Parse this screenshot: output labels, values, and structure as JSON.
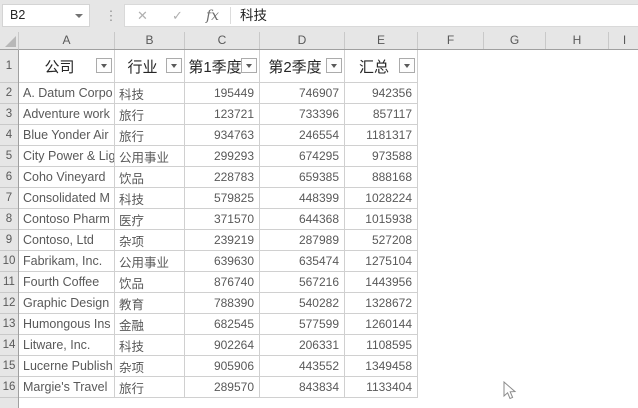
{
  "formula_bar": {
    "name_box": "B2",
    "handle_icon": "⋮",
    "cancel_label": "✕",
    "enter_label": "✓",
    "fx_label": "fx",
    "value": "科技"
  },
  "sheet": {
    "column_letters": [
      "A",
      "B",
      "C",
      "D",
      "E",
      "F",
      "G",
      "H",
      "I"
    ],
    "row_numbers": [
      "1",
      "2",
      "3",
      "4",
      "5",
      "6",
      "7",
      "8",
      "9",
      "10",
      "11",
      "12",
      "13",
      "14",
      "15",
      "16"
    ]
  },
  "table": {
    "headers": [
      "公司",
      "行业",
      "第1季度",
      "第2季度",
      "汇总"
    ],
    "rows": [
      [
        "A. Datum Corpo",
        "科技",
        "195449",
        "746907",
        "942356"
      ],
      [
        "Adventure work",
        "旅行",
        "123721",
        "733396",
        "857117"
      ],
      [
        "Blue Yonder Air",
        "旅行",
        "934763",
        "246554",
        "1181317"
      ],
      [
        "City Power & Lig",
        "公用事业",
        "299293",
        "674295",
        "973588"
      ],
      [
        "Coho Vineyard",
        "饮品",
        "228783",
        "659385",
        "888168"
      ],
      [
        "Consolidated M",
        "科技",
        "579825",
        "448399",
        "1028224"
      ],
      [
        "Contoso Pharm",
        "医疗",
        "371570",
        "644368",
        "1015938"
      ],
      [
        "Contoso, Ltd",
        "杂项",
        "239219",
        "287989",
        "527208"
      ],
      [
        "Fabrikam, Inc.",
        "公用事业",
        "639630",
        "635474",
        "1275104"
      ],
      [
        "Fourth Coffee",
        "饮品",
        "876740",
        "567216",
        "1443956"
      ],
      [
        "Graphic Design",
        "教育",
        "788390",
        "540282",
        "1328672"
      ],
      [
        "Humongous Ins",
        "金融",
        "682545",
        "577599",
        "1260144"
      ],
      [
        "Litware, Inc.",
        "科技",
        "902264",
        "206331",
        "1108595"
      ],
      [
        "Lucerne Publish",
        "杂项",
        "905906",
        "443552",
        "1349458"
      ],
      [
        "Margie's Travel",
        "旅行",
        "289570",
        "843834",
        "1133404"
      ]
    ]
  },
  "colors": {
    "chrome_bg": "#e6e6e6",
    "grid_border": "#d0d0d0",
    "strip_border": "#a0a0a0",
    "strip_text": "#595959",
    "cell_text": "#595959",
    "header_text": "#262626"
  }
}
